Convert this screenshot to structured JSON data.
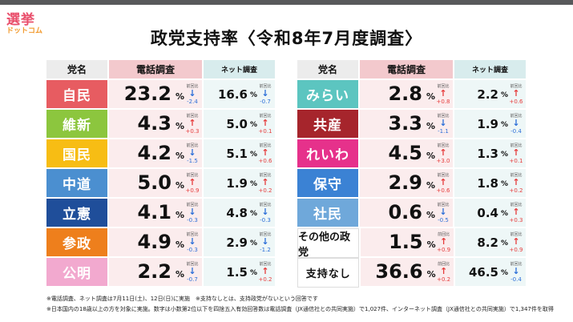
{
  "logo": {
    "line1": "選挙",
    "line2": "ドットコム"
  },
  "title": "政党支持率〈令和8年7月度調査〉",
  "headers": {
    "party": "党名",
    "phone": "電話調査",
    "net": "ネット調査",
    "prev_label": "前回比",
    "percent": "%"
  },
  "colors": {
    "up": "#e63c3c",
    "down": "#2c6fd8"
  },
  "chart_data": {
    "type": "table",
    "title": "政党支持率〈令和8年7月度調査〉",
    "columns": [
      "党名",
      "電話調査",
      "前回比",
      "ネット調査",
      "前回比"
    ],
    "rows_left": [
      {
        "party": "自民",
        "bg": "#e75c61",
        "phone": "23.2",
        "phone_dir": "down",
        "phone_change": "-2.4",
        "net": "16.6",
        "net_dir": "down",
        "net_change": "-0.7"
      },
      {
        "party": "維新",
        "bg": "#8cc63e",
        "phone": "4.3",
        "phone_dir": "up",
        "phone_change": "+0.3",
        "net": "5.0",
        "net_dir": "up",
        "net_change": "+0.1"
      },
      {
        "party": "国民",
        "bg": "#f7bd14",
        "phone": "4.2",
        "phone_dir": "down",
        "phone_change": "-1.5",
        "net": "5.1",
        "net_dir": "up",
        "net_change": "+0.6"
      },
      {
        "party": "中道",
        "bg": "#4b8fd0",
        "phone": "5.0",
        "phone_dir": "up",
        "phone_change": "+0.9",
        "net": "1.9",
        "net_dir": "up",
        "net_change": "+0.2"
      },
      {
        "party": "立憲",
        "bg": "#1f4e9a",
        "phone": "4.1",
        "phone_dir": "down",
        "phone_change": "-0.3",
        "net": "4.8",
        "net_dir": "down",
        "net_change": "-0.3"
      },
      {
        "party": "参政",
        "bg": "#ee7f1c",
        "phone": "4.9",
        "phone_dir": "down",
        "phone_change": "-0.3",
        "net": "2.9",
        "net_dir": "down",
        "net_change": "-1.2"
      },
      {
        "party": "公明",
        "bg": "#f2a9cf",
        "phone": "2.2",
        "phone_dir": "down",
        "phone_change": "-0.7",
        "net": "1.5",
        "net_dir": "up",
        "net_change": "+0.2"
      }
    ],
    "rows_right": [
      {
        "party": "みらい",
        "bg": "#5cc5c0",
        "phone": "2.8",
        "phone_dir": "up",
        "phone_change": "+0.8",
        "net": "2.2",
        "net_dir": "up",
        "net_change": "+0.6"
      },
      {
        "party": "共産",
        "bg": "#a6252c",
        "phone": "3.3",
        "phone_dir": "down",
        "phone_change": "-1.1",
        "net": "1.9",
        "net_dir": "down",
        "net_change": "-0.4"
      },
      {
        "party": "れいわ",
        "bg": "#e6318b",
        "phone": "4.5",
        "phone_dir": "up",
        "phone_change": "+3.0",
        "net": "1.3",
        "net_dir": "up",
        "net_change": "+0.1"
      },
      {
        "party": "保守",
        "bg": "#3b82d4",
        "phone": "2.9",
        "phone_dir": "up",
        "phone_change": "+0.6",
        "net": "1.8",
        "net_dir": "up",
        "net_change": "+0.2"
      },
      {
        "party": "社民",
        "bg": "#6fa8da",
        "phone": "0.6",
        "phone_dir": "down",
        "phone_change": "-0.5",
        "net": "0.4",
        "net_dir": "up",
        "net_change": "+0.3"
      },
      {
        "party": "その他の政党",
        "bg": "#ffffff",
        "phone": "1.5",
        "phone_dir": "up",
        "phone_change": "+0.9",
        "net": "8.2",
        "net_dir": "up",
        "net_change": "+0.9"
      },
      {
        "party": "支持なし",
        "bg": "#ffffff",
        "phone": "36.6",
        "phone_dir": "up",
        "phone_change": "+0.2",
        "net": "46.5",
        "net_dir": "down",
        "net_change": "-0.4"
      }
    ]
  },
  "notes": [
    "※電話調査、ネット調査は7月11日(土)、12日(日)に実施　※支持なしとは、支持政党がないという回答です",
    "※日本国内の18歳以上の方を対象に実施。数字は小数第2位以下を四捨五入有効回答数は電話調査（JX通信社との共同実施）で1,027件、インターネット調査（JX通信社との共同実施）で1,347件を取得"
  ]
}
